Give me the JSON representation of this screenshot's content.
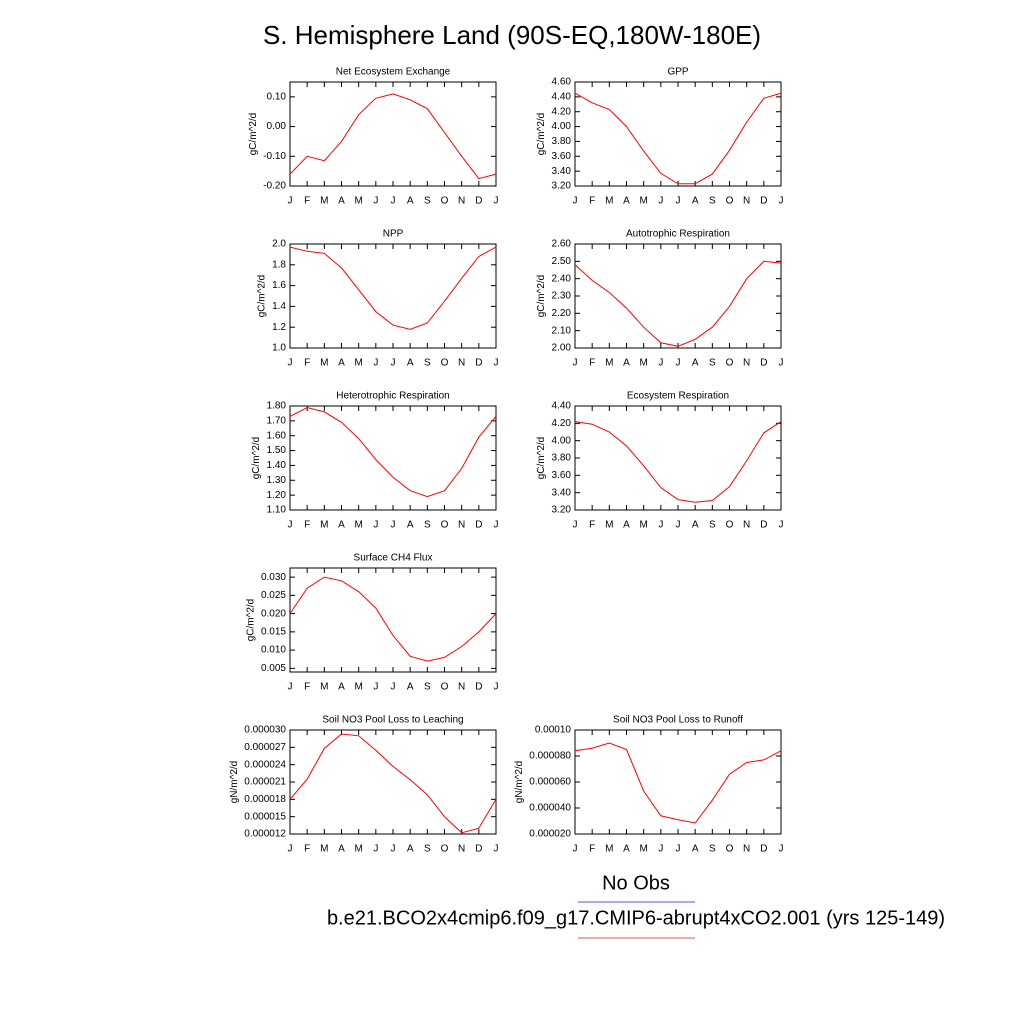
{
  "title": "S. Hemisphere Land (90S-EQ,180W-180E)",
  "legend": [
    {
      "name": "No Obs",
      "color": "#7777ee"
    },
    {
      "name": "b.e21.BCO2x4cmip6.f09_g17.CMIP6-abrupt4xCO2.001 (yrs 125-149)",
      "color": "#ee7777"
    }
  ],
  "chart_data": [
    {
      "type": "line",
      "title": "Net Ecosystem Exchange",
      "ylabel": "gC/m^2/d",
      "color": "#ff0000",
      "categories": [
        "J",
        "F",
        "M",
        "A",
        "M",
        "J",
        "J",
        "A",
        "S",
        "O",
        "N",
        "D",
        "J"
      ],
      "values": [
        -0.16,
        -0.1,
        -0.115,
        -0.05,
        0.04,
        0.095,
        0.11,
        0.09,
        0.06,
        -0.02,
        -0.1,
        -0.175,
        -0.16
      ],
      "ylim": [
        -0.2,
        0.15
      ],
      "yticks": [
        {
          "value": -0.2,
          "label": "-0.20"
        },
        {
          "value": -0.1,
          "label": "-0.10"
        },
        {
          "value": 0,
          "label": "0.00"
        },
        {
          "value": 0.1,
          "label": "0.10"
        }
      ]
    },
    {
      "type": "line",
      "title": "GPP",
      "ylabel": "gC/m^2/d",
      "color": "#ff0000",
      "categories": [
        "J",
        "F",
        "M",
        "A",
        "M",
        "J",
        "J",
        "A",
        "S",
        "O",
        "N",
        "D",
        "J"
      ],
      "values": [
        4.45,
        4.32,
        4.23,
        4.0,
        3.67,
        3.37,
        3.23,
        3.23,
        3.36,
        3.68,
        4.06,
        4.38,
        4.45
      ],
      "ylim": [
        3.2,
        4.6
      ],
      "yticks": [
        {
          "value": 3.2,
          "label": "3.20"
        },
        {
          "value": 3.4,
          "label": "3.40"
        },
        {
          "value": 3.6,
          "label": "3.60"
        },
        {
          "value": 3.8,
          "label": "3.80"
        },
        {
          "value": 4.0,
          "label": "4.00"
        },
        {
          "value": 4.2,
          "label": "4.20"
        },
        {
          "value": 4.4,
          "label": "4.40"
        },
        {
          "value": 4.6,
          "label": "4.60"
        }
      ]
    },
    {
      "type": "line",
      "title": "NPP",
      "ylabel": "gC/m^2/d",
      "color": "#ff0000",
      "categories": [
        "J",
        "F",
        "M",
        "A",
        "M",
        "J",
        "J",
        "A",
        "S",
        "O",
        "N",
        "D",
        "J"
      ],
      "values": [
        1.97,
        1.93,
        1.91,
        1.77,
        1.56,
        1.35,
        1.22,
        1.18,
        1.24,
        1.45,
        1.67,
        1.88,
        1.97
      ],
      "ylim": [
        1.0,
        2.0
      ],
      "yticks": [
        {
          "value": 1.0,
          "label": "1.0"
        },
        1.2,
        1.4,
        1.6,
        1.8,
        {
          "value": 2.0,
          "label": "2.0"
        }
      ]
    },
    {
      "type": "line",
      "title": "Autotrophic Respiration",
      "ylabel": "gC/m^2/d",
      "color": "#ff0000",
      "categories": [
        "J",
        "F",
        "M",
        "A",
        "M",
        "J",
        "J",
        "A",
        "S",
        "O",
        "N",
        "D",
        "J"
      ],
      "values": [
        2.48,
        2.39,
        2.32,
        2.23,
        2.12,
        2.03,
        2.01,
        2.05,
        2.12,
        2.24,
        2.4,
        2.5,
        2.49
      ],
      "ylim": [
        2.0,
        2.6
      ],
      "yticks": [
        {
          "value": 2.0,
          "label": "2.00"
        },
        {
          "value": 2.1,
          "label": "2.10"
        },
        {
          "value": 2.2,
          "label": "2.20"
        },
        {
          "value": 2.3,
          "label": "2.30"
        },
        {
          "value": 2.4,
          "label": "2.40"
        },
        {
          "value": 2.5,
          "label": "2.50"
        },
        {
          "value": 2.6,
          "label": "2.60"
        }
      ]
    },
    {
      "type": "line",
      "title": "Heterotrophic Respiration",
      "ylabel": "gC/m^2/d",
      "color": "#ff0000",
      "categories": [
        "J",
        "F",
        "M",
        "A",
        "M",
        "J",
        "J",
        "A",
        "S",
        "O",
        "N",
        "D",
        "J"
      ],
      "values": [
        1.73,
        1.79,
        1.76,
        1.69,
        1.58,
        1.44,
        1.32,
        1.23,
        1.19,
        1.23,
        1.38,
        1.59,
        1.73
      ],
      "ylim": [
        1.1,
        1.8
      ],
      "yticks": [
        {
          "value": 1.1,
          "label": "1.10"
        },
        {
          "value": 1.2,
          "label": "1.20"
        },
        {
          "value": 1.3,
          "label": "1.30"
        },
        {
          "value": 1.4,
          "label": "1.40"
        },
        {
          "value": 1.5,
          "label": "1.50"
        },
        {
          "value": 1.6,
          "label": "1.60"
        },
        {
          "value": 1.7,
          "label": "1.70"
        },
        {
          "value": 1.8,
          "label": "1.80"
        }
      ]
    },
    {
      "type": "line",
      "title": "Ecosystem Respiration",
      "ylabel": "gC/m^2/d",
      "color": "#ff0000",
      "categories": [
        "J",
        "F",
        "M",
        "A",
        "M",
        "J",
        "J",
        "A",
        "S",
        "O",
        "N",
        "D",
        "J"
      ],
      "values": [
        4.22,
        4.19,
        4.1,
        3.94,
        3.71,
        3.46,
        3.32,
        3.29,
        3.31,
        3.47,
        3.77,
        4.09,
        4.22
      ],
      "ylim": [
        3.2,
        4.4
      ],
      "yticks": [
        {
          "value": 3.2,
          "label": "3.20"
        },
        {
          "value": 3.4,
          "label": "3.40"
        },
        {
          "value": 3.6,
          "label": "3.60"
        },
        {
          "value": 3.8,
          "label": "3.80"
        },
        {
          "value": 4.0,
          "label": "4.00"
        },
        {
          "value": 4.2,
          "label": "4.20"
        },
        {
          "value": 4.4,
          "label": "4.40"
        }
      ]
    },
    {
      "type": "line",
      "title": "Surface CH4 Flux",
      "ylabel": "gC/m^2/d",
      "color": "#ff0000",
      "categories": [
        "J",
        "F",
        "M",
        "A",
        "M",
        "J",
        "J",
        "A",
        "S",
        "O",
        "N",
        "D",
        "J"
      ],
      "values": [
        0.02,
        0.027,
        0.03,
        0.029,
        0.026,
        0.0215,
        0.014,
        0.0083,
        0.007,
        0.008,
        0.011,
        0.015,
        0.02
      ],
      "ylim": [
        0.004,
        0.0325
      ],
      "yticks": [
        0.005,
        {
          "value": 0.01,
          "label": "0.010"
        },
        0.015,
        {
          "value": 0.02,
          "label": "0.020"
        },
        0.025,
        {
          "value": 0.03,
          "label": "0.030"
        }
      ]
    },
    {
      "type": "line",
      "title": "Soil NO3 Pool Loss to Leaching",
      "ylabel": "gN/m^2/d",
      "color": "#ff0000",
      "categories": [
        "J",
        "F",
        "M",
        "A",
        "M",
        "J",
        "J",
        "A",
        "S",
        "O",
        "N",
        "D",
        "J"
      ],
      "values": [
        1.8e-05,
        2.15e-05,
        2.68e-05,
        2.93e-05,
        2.9e-05,
        2.65e-05,
        2.37e-05,
        2.14e-05,
        1.88e-05,
        1.5e-05,
        1.22e-05,
        1.3e-05,
        1.8e-05
      ],
      "ylim": [
        1.2e-05,
        3e-05
      ],
      "yticks": [
        {
          "value": 1.2e-05,
          "label": "0.000012"
        },
        {
          "value": 1.5e-05,
          "label": "0.000015"
        },
        {
          "value": 1.8e-05,
          "label": "0.000018"
        },
        {
          "value": 2.1e-05,
          "label": "0.000021"
        },
        {
          "value": 2.4e-05,
          "label": "0.000024"
        },
        {
          "value": 2.7e-05,
          "label": "0.000027"
        },
        {
          "value": 3e-05,
          "label": "0.000030"
        }
      ]
    },
    {
      "type": "line",
      "title": "Soil NO3 Pool Loss to Runoff",
      "ylabel": "gN/m^2/d",
      "color": "#ff0000",
      "categories": [
        "J",
        "F",
        "M",
        "A",
        "M",
        "J",
        "J",
        "A",
        "S",
        "O",
        "N",
        "D",
        "J"
      ],
      "values": [
        8.4e-05,
        8.6e-05,
        9e-05,
        8.5e-05,
        5.3e-05,
        3.4e-05,
        3.1e-05,
        2.85e-05,
        4.6e-05,
        6.6e-05,
        7.5e-05,
        7.7e-05,
        8.4e-05
      ],
      "ylim": [
        2e-05,
        0.0001
      ],
      "yticks": [
        {
          "value": 2e-05,
          "label": "0.000020"
        },
        {
          "value": 4e-05,
          "label": "0.000040"
        },
        {
          "value": 6e-05,
          "label": "0.000060"
        },
        {
          "value": 8e-05,
          "label": "0.000080"
        },
        {
          "value": 0.0001,
          "label": "0.00010"
        }
      ]
    }
  ]
}
